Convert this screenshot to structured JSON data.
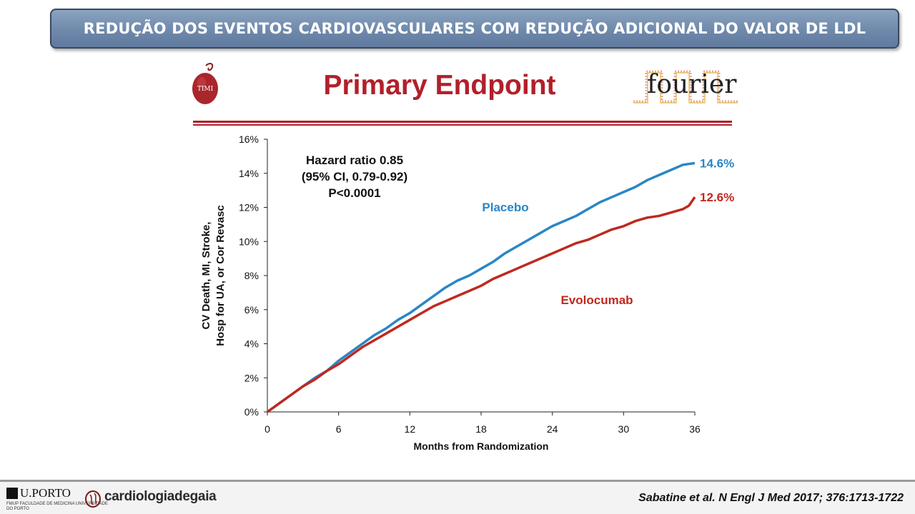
{
  "banner": {
    "title": "REDUÇÃO DOS EVENTOS CARDIOVASCULARES COM REDUÇÃO ADICIONAL DO VALOR DE LDL"
  },
  "slide": {
    "title": "Primary Endpoint"
  },
  "logos": {
    "timi": "TIMI",
    "fourier": "fourier"
  },
  "footer": {
    "uporto": "U.PORTO",
    "faculty": "FMUP FACULDADE DE MEDICINA UNIVERSIDADE DO PORTO",
    "brand": "cardiologiadegaia",
    "citation": "Sabatine et al. N Engl J Med 2017; 376:1713-1722"
  },
  "chart_data": {
    "type": "line",
    "xlabel": "Months from Randomization",
    "ylabel": [
      "CV Death, MI, Stroke,",
      "Hosp for UA, or Cor Revasc"
    ],
    "xlim": [
      0,
      36
    ],
    "ylim": [
      0,
      16
    ],
    "xticks": [
      0,
      6,
      12,
      18,
      24,
      30,
      36
    ],
    "yticks": [
      "0%",
      "2%",
      "4%",
      "6%",
      "8%",
      "10%",
      "12%",
      "14%",
      "16%"
    ],
    "grid": false,
    "annotation": [
      "Hazard ratio 0.85",
      "(95% CI, 0.79-0.92)",
      "P<0.0001"
    ],
    "series": [
      {
        "name": "Placebo",
        "color": "#2a86c6",
        "end_label": "14.6%",
        "x": [
          0,
          1,
          2,
          3,
          4,
          5,
          6,
          7,
          8,
          9,
          10,
          11,
          12,
          13,
          14,
          15,
          16,
          17,
          18,
          19,
          20,
          21,
          22,
          23,
          24,
          25,
          26,
          27,
          28,
          29,
          30,
          31,
          32,
          33,
          34,
          35,
          36
        ],
        "y": [
          0,
          0.5,
          1.0,
          1.5,
          2.0,
          2.4,
          3.0,
          3.5,
          4.0,
          4.5,
          4.9,
          5.4,
          5.8,
          6.3,
          6.8,
          7.3,
          7.7,
          8.0,
          8.4,
          8.8,
          9.3,
          9.7,
          10.1,
          10.5,
          10.9,
          11.2,
          11.5,
          11.9,
          12.3,
          12.6,
          12.9,
          13.2,
          13.6,
          13.9,
          14.2,
          14.5,
          14.6
        ]
      },
      {
        "name": "Evolocumab",
        "color": "#c0281f",
        "end_label": "12.6%",
        "x": [
          0,
          1,
          2,
          3,
          4,
          5,
          6,
          7,
          8,
          9,
          10,
          11,
          12,
          13,
          14,
          15,
          16,
          17,
          18,
          19,
          20,
          21,
          22,
          23,
          24,
          25,
          26,
          27,
          28,
          29,
          30,
          31,
          32,
          33,
          34,
          35,
          35.5,
          36
        ],
        "y": [
          0,
          0.5,
          1.0,
          1.5,
          1.9,
          2.4,
          2.8,
          3.3,
          3.8,
          4.2,
          4.6,
          5.0,
          5.4,
          5.8,
          6.2,
          6.5,
          6.8,
          7.1,
          7.4,
          7.8,
          8.1,
          8.4,
          8.7,
          9.0,
          9.3,
          9.6,
          9.9,
          10.1,
          10.4,
          10.7,
          10.9,
          11.2,
          11.4,
          11.5,
          11.7,
          11.9,
          12.1,
          12.6
        ]
      }
    ]
  }
}
